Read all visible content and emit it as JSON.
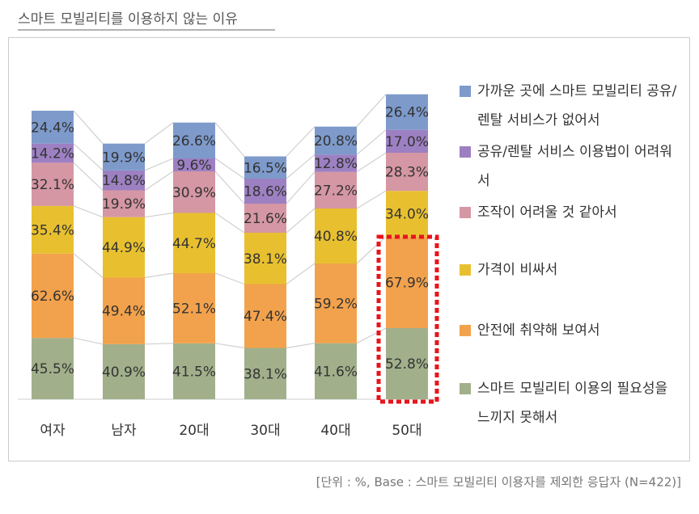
{
  "chart_data": {
    "type": "stacked-bar",
    "title": "스마트 모빌리티를 이용하지 않는 이유",
    "footnote": "[단위 : %, Base : 스마트 모빌리티 이용자를 제외한 응답자 (N=422)]",
    "categories": [
      "여자",
      "남자",
      "20대",
      "30대",
      "40대",
      "50대"
    ],
    "ylim": [
      0,
      240
    ],
    "series": [
      {
        "name": "스마트 모빌리티 이용의 필요성을 느끼지 못해서",
        "color": "#a1b08b",
        "values": [
          45.5,
          40.9,
          41.5,
          38.1,
          41.6,
          52.8
        ],
        "value_labels": [
          "45.5%",
          "40.9%",
          "41.5%",
          "38.1%",
          "41.6%",
          "52.8%"
        ]
      },
      {
        "name": "안전에 취약해 보여서",
        "color": "#f2a24c",
        "values": [
          62.6,
          49.4,
          52.1,
          47.4,
          59.2,
          67.9
        ],
        "value_labels": [
          "62.6%",
          "49.4%",
          "52.1%",
          "47.4%",
          "59.2%",
          "67.9%"
        ]
      },
      {
        "name": "가격이 비싸서",
        "color": "#e8c02f",
        "values": [
          35.4,
          44.9,
          44.7,
          38.1,
          40.8,
          34.0
        ],
        "value_labels": [
          "35.4%",
          "44.9%",
          "44.7%",
          "38.1%",
          "40.8%",
          "34.0%"
        ]
      },
      {
        "name": "조작이 어려울 것 같아서",
        "color": "#d597a3",
        "values": [
          32.1,
          19.9,
          30.9,
          21.6,
          27.2,
          28.3
        ],
        "value_labels": [
          "32.1%",
          "19.9%",
          "30.9%",
          "21.6%",
          "27.2%",
          "28.3%"
        ]
      },
      {
        "name": "공유/렌탈 서비스 이용법이 어려워서",
        "color": "#9d80c2",
        "values": [
          14.2,
          14.8,
          9.6,
          18.6,
          12.8,
          17.0
        ],
        "value_labels": [
          "14.2%",
          "14.8%",
          "9.6%",
          "18.6%",
          "12.8%",
          "17.0%"
        ]
      },
      {
        "name": "가까운 곳에 스마트 모빌리티 공유/렌탈 서비스가 없어서",
        "color": "#7d9acb",
        "values": [
          24.4,
          19.9,
          26.6,
          16.5,
          20.8,
          26.4
        ],
        "value_labels": [
          "24.4%",
          "19.9%",
          "26.6%",
          "16.5%",
          "20.8%",
          "26.4%"
        ]
      }
    ]
  }
}
